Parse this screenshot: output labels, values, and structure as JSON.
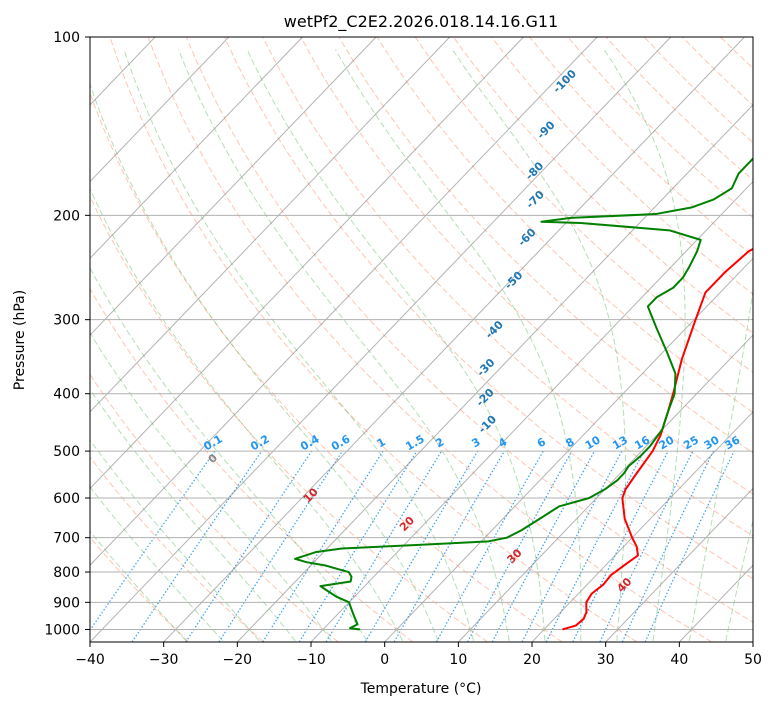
{
  "chart_data": {
    "type": "line",
    "title": "wetPf2_C2E2.2026.018.14.16.G11",
    "xlabel": "Temperature (°C)",
    "ylabel": "Pressure (hPa)",
    "xlim": [
      -40,
      50
    ],
    "ylim": [
      1050,
      100
    ],
    "x_ticks": [
      -40,
      -30,
      -20,
      -10,
      0,
      10,
      20,
      30,
      40,
      50
    ],
    "y_ticks": [
      100,
      200,
      300,
      400,
      500,
      600,
      700,
      800,
      900,
      1000
    ],
    "colors": {
      "temperature": "#ff0000",
      "dewpoint": "#008000",
      "isotherm": "#808080",
      "dry_adiabat": "#ff7f50",
      "moist_adiabat": "#2ca02c",
      "mixing_ratio": "#1f77b4",
      "special_adiabat": "#d2b48c"
    },
    "series": [
      {
        "name": "Temperature",
        "color": "#ff0000",
        "points": [
          [
            1000,
            22.5
          ],
          [
            985,
            23.8
          ],
          [
            960,
            24.0
          ],
          [
            935,
            23.5
          ],
          [
            900,
            22.2
          ],
          [
            870,
            21.8
          ],
          [
            840,
            22.2
          ],
          [
            810,
            22.0
          ],
          [
            780,
            22.5
          ],
          [
            750,
            23.1
          ],
          [
            725,
            21.8
          ],
          [
            700,
            20.0
          ],
          [
            650,
            16.5
          ],
          [
            600,
            13.5
          ],
          [
            580,
            12.8
          ],
          [
            550,
            12.3
          ],
          [
            500,
            11.5
          ],
          [
            470,
            10.5
          ],
          [
            430,
            8.5
          ],
          [
            400,
            6.8
          ],
          [
            350,
            3.5
          ],
          [
            300,
            0.2
          ],
          [
            270,
            -2.0
          ],
          [
            250,
            -2.0
          ],
          [
            230,
            -1.5
          ],
          [
            220,
            0.0
          ],
          [
            210,
            2.5
          ],
          [
            200,
            4.5
          ],
          [
            190,
            5.5
          ],
          [
            180,
            5.3
          ],
          [
            160,
            4.5
          ],
          [
            150,
            4.0
          ],
          [
            140,
            4.3
          ],
          [
            130,
            6.0
          ],
          [
            120,
            7.5
          ],
          [
            110,
            8.5
          ],
          [
            100,
            10.5
          ]
        ]
      },
      {
        "name": "Dewpoint",
        "color": "#008000",
        "points": [
          [
            1000,
            -5.0
          ],
          [
            995,
            -6.5
          ],
          [
            980,
            -6.0
          ],
          [
            960,
            -7.0
          ],
          [
            940,
            -8.0
          ],
          [
            920,
            -9.0
          ],
          [
            900,
            -10.0
          ],
          [
            880,
            -12.5
          ],
          [
            860,
            -14.5
          ],
          [
            845,
            -16.0
          ],
          [
            830,
            -12.5
          ],
          [
            815,
            -13.0
          ],
          [
            800,
            -14.0
          ],
          [
            790,
            -16.0
          ],
          [
            780,
            -18.0
          ],
          [
            770,
            -21.0
          ],
          [
            760,
            -23.0
          ],
          [
            740,
            -21.0
          ],
          [
            730,
            -18.0
          ],
          [
            720,
            -8.0
          ],
          [
            710,
            1.0
          ],
          [
            700,
            3.0
          ],
          [
            680,
            4.0
          ],
          [
            650,
            5.0
          ],
          [
            620,
            6.0
          ],
          [
            600,
            9.0
          ],
          [
            580,
            10.0
          ],
          [
            560,
            10.5
          ],
          [
            545,
            10.5
          ],
          [
            530,
            10.2
          ],
          [
            510,
            10.5
          ],
          [
            490,
            10.5
          ],
          [
            460,
            10.0
          ],
          [
            430,
            8.5
          ],
          [
            400,
            7.0
          ],
          [
            370,
            4.5
          ],
          [
            340,
            0.5
          ],
          [
            310,
            -4.0
          ],
          [
            285,
            -8.0
          ],
          [
            275,
            -8.0
          ],
          [
            265,
            -7.0
          ],
          [
            255,
            -7.0
          ],
          [
            245,
            -7.5
          ],
          [
            230,
            -8.5
          ],
          [
            220,
            -9.5
          ],
          [
            212,
            -15.0
          ],
          [
            206,
            -28.0
          ],
          [
            205,
            -33.5
          ],
          [
            202,
            -30.0
          ],
          [
            199,
            -19.0
          ],
          [
            194,
            -15.0
          ],
          [
            188,
            -13.0
          ],
          [
            180,
            -12.0
          ],
          [
            170,
            -13.0
          ],
          [
            160,
            -13.0
          ],
          [
            150,
            -12.0
          ],
          [
            140,
            -10.0
          ],
          [
            130,
            -7.0
          ],
          [
            125,
            -5.5
          ],
          [
            120,
            -3.5
          ],
          [
            110,
            -2.0
          ],
          [
            100,
            1.5
          ]
        ]
      }
    ],
    "dry_adiabat_labels": [
      {
        "theta": 0,
        "text": "0"
      },
      {
        "theta": 10,
        "text": "10"
      },
      {
        "theta": 20,
        "text": "20"
      },
      {
        "theta": 30,
        "text": "30"
      },
      {
        "theta": 40,
        "text": "40"
      }
    ],
    "moist_adiabat_labels": [
      "-100",
      "-90",
      "-80",
      "-70",
      "-60",
      "-50",
      "-40",
      "-30",
      "-20",
      "-10"
    ],
    "mixing_ratio_labels": [
      "0.1",
      "0.2",
      "0.4",
      "0.6",
      "1",
      "1.5",
      "2",
      "3",
      "4",
      "6",
      "8",
      "10",
      "13",
      "16",
      "20",
      "25",
      "30",
      "36"
    ]
  }
}
